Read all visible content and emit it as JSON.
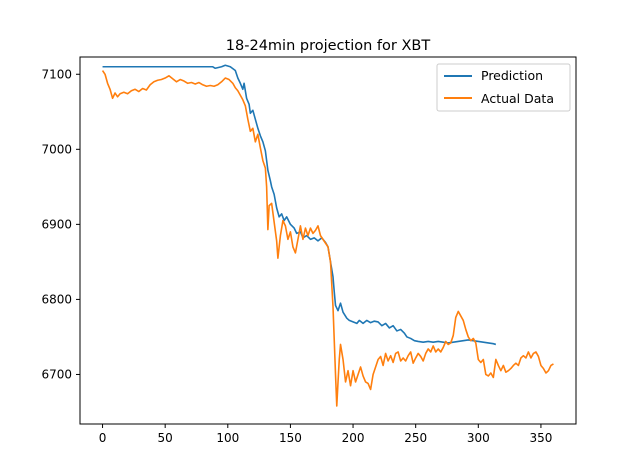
{
  "chart_data": {
    "type": "line",
    "title": "18-24min projection for XBT",
    "xlabel": "",
    "ylabel": "",
    "xlim": [
      -18,
      378
    ],
    "ylim": [
      6634,
      7123
    ],
    "x_ticks": [
      0,
      50,
      100,
      150,
      200,
      250,
      300,
      350
    ],
    "y_ticks": [
      6700,
      6800,
      6900,
      7000,
      7100
    ],
    "grid": false,
    "legend_position": "top-right",
    "series": [
      {
        "name": "Prediction",
        "color": "#1f77b4",
        "points": [
          [
            0,
            7110
          ],
          [
            20,
            7110
          ],
          [
            40,
            7110
          ],
          [
            60,
            7110
          ],
          [
            80,
            7110
          ],
          [
            88,
            7110
          ],
          [
            90,
            7108
          ],
          [
            95,
            7110
          ],
          [
            98,
            7112
          ],
          [
            102,
            7110
          ],
          [
            106,
            7105
          ],
          [
            108,
            7095
          ],
          [
            110,
            7088
          ],
          [
            112,
            7080
          ],
          [
            113,
            7088
          ],
          [
            115,
            7068
          ],
          [
            117,
            7060
          ],
          [
            118,
            7048
          ],
          [
            120,
            7052
          ],
          [
            122,
            7040
          ],
          [
            124,
            7028
          ],
          [
            126,
            7018
          ],
          [
            128,
            7010
          ],
          [
            130,
            6998
          ],
          [
            131,
            6985
          ],
          [
            132,
            6972
          ],
          [
            134,
            6958
          ],
          [
            135,
            6950
          ],
          [
            137,
            6940
          ],
          [
            139,
            6922
          ],
          [
            141,
            6910
          ],
          [
            143,
            6914
          ],
          [
            145,
            6905
          ],
          [
            147,
            6910
          ],
          [
            150,
            6900
          ],
          [
            153,
            6895
          ],
          [
            155,
            6888
          ],
          [
            158,
            6890
          ],
          [
            160,
            6882
          ],
          [
            163,
            6885
          ],
          [
            166,
            6880
          ],
          [
            169,
            6882
          ],
          [
            172,
            6878
          ],
          [
            175,
            6882
          ],
          [
            178,
            6876
          ],
          [
            180,
            6870
          ],
          [
            182,
            6850
          ],
          [
            183,
            6840
          ],
          [
            184,
            6830
          ],
          [
            185,
            6810
          ],
          [
            186,
            6792
          ],
          [
            188,
            6785
          ],
          [
            190,
            6795
          ],
          [
            192,
            6783
          ],
          [
            195,
            6775
          ],
          [
            197,
            6772
          ],
          [
            200,
            6770
          ],
          [
            203,
            6768
          ],
          [
            205,
            6772
          ],
          [
            208,
            6768
          ],
          [
            211,
            6772
          ],
          [
            214,
            6769
          ],
          [
            217,
            6771
          ],
          [
            220,
            6770
          ],
          [
            223,
            6765
          ],
          [
            226,
            6768
          ],
          [
            229,
            6762
          ],
          [
            232,
            6765
          ],
          [
            235,
            6758
          ],
          [
            238,
            6760
          ],
          [
            241,
            6755
          ],
          [
            243,
            6750
          ],
          [
            246,
            6748
          ],
          [
            249,
            6745
          ],
          [
            252,
            6744
          ],
          [
            256,
            6743
          ],
          [
            260,
            6744
          ],
          [
            264,
            6743
          ],
          [
            268,
            6744
          ],
          [
            272,
            6743
          ],
          [
            276,
            6742
          ],
          [
            280,
            6743
          ],
          [
            284,
            6744
          ],
          [
            288,
            6745
          ],
          [
            292,
            6746
          ],
          [
            296,
            6745
          ],
          [
            300,
            6744
          ],
          [
            304,
            6743
          ],
          [
            308,
            6742
          ],
          [
            312,
            6741
          ],
          [
            314,
            6740
          ]
        ]
      },
      {
        "name": "Actual Data",
        "color": "#ff7f0e",
        "points": [
          [
            0,
            7105
          ],
          [
            2,
            7100
          ],
          [
            4,
            7088
          ],
          [
            6,
            7080
          ],
          [
            8,
            7068
          ],
          [
            10,
            7075
          ],
          [
            12,
            7070
          ],
          [
            14,
            7074
          ],
          [
            17,
            7076
          ],
          [
            20,
            7074
          ],
          [
            23,
            7078
          ],
          [
            26,
            7080
          ],
          [
            29,
            7077
          ],
          [
            32,
            7081
          ],
          [
            35,
            7079
          ],
          [
            38,
            7086
          ],
          [
            41,
            7090
          ],
          [
            44,
            7092
          ],
          [
            47,
            7093
          ],
          [
            50,
            7095
          ],
          [
            53,
            7098
          ],
          [
            56,
            7094
          ],
          [
            59,
            7090
          ],
          [
            62,
            7093
          ],
          [
            65,
            7091
          ],
          [
            68,
            7088
          ],
          [
            71,
            7089
          ],
          [
            74,
            7087
          ],
          [
            77,
            7089
          ],
          [
            80,
            7086
          ],
          [
            83,
            7084
          ],
          [
            86,
            7085
          ],
          [
            89,
            7084
          ],
          [
            92,
            7086
          ],
          [
            95,
            7090
          ],
          [
            98,
            7095
          ],
          [
            101,
            7093
          ],
          [
            104,
            7088
          ],
          [
            106,
            7082
          ],
          [
            108,
            7078
          ],
          [
            110,
            7072
          ],
          [
            112,
            7066
          ],
          [
            114,
            7058
          ],
          [
            116,
            7040
          ],
          [
            118,
            7024
          ],
          [
            120,
            7028
          ],
          [
            122,
            7010
          ],
          [
            124,
            7020
          ],
          [
            126,
            7002
          ],
          [
            128,
            6985
          ],
          [
            130,
            6975
          ],
          [
            131,
            6950
          ],
          [
            132,
            6893
          ],
          [
            133,
            6925
          ],
          [
            135,
            6928
          ],
          [
            137,
            6903
          ],
          [
            139,
            6878
          ],
          [
            140,
            6855
          ],
          [
            142,
            6885
          ],
          [
            144,
            6905
          ],
          [
            146,
            6898
          ],
          [
            148,
            6880
          ],
          [
            150,
            6890
          ],
          [
            152,
            6870
          ],
          [
            154,
            6862
          ],
          [
            156,
            6880
          ],
          [
            158,
            6898
          ],
          [
            160,
            6880
          ],
          [
            162,
            6895
          ],
          [
            164,
            6885
          ],
          [
            166,
            6895
          ],
          [
            168,
            6888
          ],
          [
            170,
            6892
          ],
          [
            172,
            6898
          ],
          [
            174,
            6885
          ],
          [
            176,
            6880
          ],
          [
            178,
            6875
          ],
          [
            180,
            6870
          ],
          [
            182,
            6850
          ],
          [
            184,
            6790
          ],
          [
            186,
            6700
          ],
          [
            187,
            6658
          ],
          [
            188,
            6690
          ],
          [
            189,
            6720
          ],
          [
            190,
            6740
          ],
          [
            192,
            6720
          ],
          [
            194,
            6690
          ],
          [
            196,
            6705
          ],
          [
            198,
            6685
          ],
          [
            200,
            6705
          ],
          [
            202,
            6690
          ],
          [
            204,
            6700
          ],
          [
            206,
            6710
          ],
          [
            208,
            6698
          ],
          [
            210,
            6690
          ],
          [
            212,
            6688
          ],
          [
            214,
            6680
          ],
          [
            216,
            6700
          ],
          [
            218,
            6710
          ],
          [
            220,
            6720
          ],
          [
            222,
            6724
          ],
          [
            224,
            6712
          ],
          [
            226,
            6728
          ],
          [
            228,
            6718
          ],
          [
            230,
            6725
          ],
          [
            232,
            6716
          ],
          [
            234,
            6728
          ],
          [
            236,
            6730
          ],
          [
            238,
            6718
          ],
          [
            240,
            6722
          ],
          [
            242,
            6718
          ],
          [
            244,
            6725
          ],
          [
            246,
            6730
          ],
          [
            248,
            6715
          ],
          [
            250,
            6722
          ],
          [
            252,
            6728
          ],
          [
            254,
            6724
          ],
          [
            256,
            6718
          ],
          [
            258,
            6728
          ],
          [
            260,
            6734
          ],
          [
            262,
            6730
          ],
          [
            264,
            6738
          ],
          [
            266,
            6730
          ],
          [
            268,
            6734
          ],
          [
            270,
            6730
          ],
          [
            272,
            6736
          ],
          [
            274,
            6744
          ],
          [
            276,
            6740
          ],
          [
            278,
            6742
          ],
          [
            280,
            6752
          ],
          [
            282,
            6776
          ],
          [
            284,
            6784
          ],
          [
            286,
            6778
          ],
          [
            288,
            6772
          ],
          [
            290,
            6760
          ],
          [
            292,
            6750
          ],
          [
            294,
            6745
          ],
          [
            296,
            6748
          ],
          [
            298,
            6742
          ],
          [
            300,
            6720
          ],
          [
            302,
            6716
          ],
          [
            304,
            6720
          ],
          [
            306,
            6700
          ],
          [
            308,
            6698
          ],
          [
            310,
            6702
          ],
          [
            312,
            6696
          ],
          [
            314,
            6720
          ],
          [
            316,
            6712
          ],
          [
            318,
            6705
          ],
          [
            320,
            6712
          ],
          [
            322,
            6703
          ],
          [
            324,
            6705
          ],
          [
            326,
            6708
          ],
          [
            328,
            6712
          ],
          [
            330,
            6715
          ],
          [
            332,
            6712
          ],
          [
            334,
            6722
          ],
          [
            336,
            6725
          ],
          [
            338,
            6722
          ],
          [
            340,
            6730
          ],
          [
            342,
            6722
          ],
          [
            344,
            6728
          ],
          [
            346,
            6730
          ],
          [
            348,
            6724
          ],
          [
            350,
            6712
          ],
          [
            352,
            6708
          ],
          [
            354,
            6702
          ],
          [
            356,
            6705
          ],
          [
            358,
            6712
          ],
          [
            360,
            6714
          ]
        ]
      }
    ]
  }
}
